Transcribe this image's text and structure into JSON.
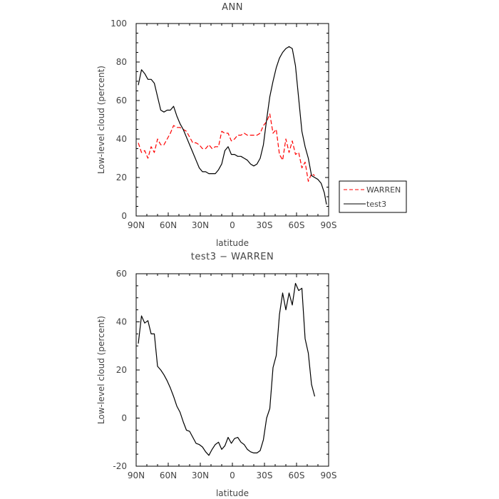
{
  "chart_data": [
    {
      "type": "line",
      "title": "ANN",
      "xlabel": "latitude",
      "ylabel": "Low-level cloud (percent)",
      "x_tick_labels": [
        "90N",
        "60N",
        "30N",
        "0",
        "30S",
        "60S",
        "90S"
      ],
      "x_tick_values": [
        90,
        60,
        30,
        0,
        -30,
        -60,
        -90
      ],
      "xlim": [
        90,
        -90
      ],
      "ylim": [
        0,
        100
      ],
      "y_ticks": [
        0,
        20,
        40,
        60,
        80,
        100
      ],
      "grid": false,
      "legend_position": "right",
      "series": [
        {
          "name": "WARREN",
          "color": "#ff0000",
          "style": "dashed",
          "x": [
            88,
            85,
            82,
            79,
            76,
            73,
            70,
            67,
            64,
            61,
            58,
            55,
            52,
            49,
            46,
            43,
            40,
            37,
            34,
            31,
            28,
            25,
            22,
            19,
            16,
            13,
            10,
            7,
            4,
            1,
            -2,
            -5,
            -8,
            -11,
            -14,
            -17,
            -20,
            -23,
            -26,
            -29,
            -32,
            -35,
            -38,
            -41,
            -44,
            -47,
            -50,
            -53,
            -56,
            -59,
            -62,
            -65,
            -68,
            -71,
            -74,
            -77
          ],
          "y": [
            38,
            33,
            34,
            30,
            36,
            33,
            40,
            37,
            37,
            40,
            43,
            47,
            46,
            46,
            45,
            44,
            41,
            38,
            38,
            37,
            35,
            35,
            37,
            35,
            36,
            36,
            44,
            43,
            43,
            39,
            40,
            42,
            42,
            43,
            42,
            42,
            42,
            42,
            43,
            47,
            49,
            53,
            43,
            45,
            32,
            29,
            40,
            33,
            39,
            32,
            33,
            25,
            28,
            18,
            22,
            21
          ]
        },
        {
          "name": "test3",
          "color": "#000000",
          "style": "solid",
          "x": [
            88,
            85,
            82,
            79,
            76,
            73,
            70,
            67,
            64,
            61,
            58,
            55,
            52,
            49,
            46,
            43,
            40,
            37,
            34,
            31,
            28,
            25,
            22,
            19,
            16,
            13,
            10,
            7,
            4,
            1,
            -2,
            -5,
            -8,
            -11,
            -14,
            -17,
            -20,
            -23,
            -26,
            -29,
            -32,
            -35,
            -38,
            -41,
            -44,
            -47,
            -50,
            -53,
            -56,
            -59,
            -62,
            -65,
            -68,
            -71,
            -74,
            -77,
            -80,
            -83,
            -86,
            -88
          ],
          "y": [
            68,
            76,
            74,
            71,
            71,
            69,
            62,
            55,
            54,
            55,
            55,
            57,
            52,
            48,
            45,
            41,
            37,
            33,
            29,
            25,
            23,
            23,
            22,
            22,
            22,
            24,
            27,
            34,
            36,
            32,
            32,
            31,
            31,
            30,
            29,
            27,
            26,
            27,
            30,
            37,
            50,
            62,
            70,
            77,
            82,
            85,
            87,
            88,
            87,
            78,
            61,
            44,
            36,
            30,
            21,
            20,
            19,
            17,
            12,
            6
          ]
        }
      ]
    },
    {
      "type": "line",
      "title": "test3 − WARREN",
      "xlabel": "latitude",
      "ylabel": "Low-level cloud (percent)",
      "x_tick_labels": [
        "90N",
        "60N",
        "30N",
        "0",
        "30S",
        "60S",
        "90S"
      ],
      "x_tick_values": [
        90,
        60,
        30,
        0,
        -30,
        -60,
        -90
      ],
      "xlim": [
        90,
        -90
      ],
      "ylim": [
        -20,
        60
      ],
      "y_ticks": [
        -20,
        0,
        20,
        40,
        60
      ],
      "grid": false,
      "series": [
        {
          "name": "test3 − WARREN",
          "color": "#000000",
          "style": "solid",
          "x": [
            88,
            85,
            82,
            79,
            76,
            73,
            70,
            67,
            64,
            61,
            58,
            55,
            52,
            49,
            46,
            43,
            40,
            37,
            34,
            31,
            28,
            25,
            22,
            19,
            16,
            13,
            10,
            7,
            4,
            1,
            -2,
            -5,
            -8,
            -11,
            -14,
            -17,
            -20,
            -23,
            -26,
            -29,
            -32,
            -35,
            -38,
            -41,
            -44,
            -47,
            -50,
            -53,
            -56,
            -59,
            -62,
            -65,
            -68,
            -71,
            -74,
            -77
          ],
          "y": [
            31,
            42.5,
            39.5,
            40.5,
            35,
            35,
            21.5,
            20,
            18,
            15.5,
            12.5,
            9,
            5,
            2.5,
            -1.5,
            -5,
            -5.5,
            -8,
            -10.5,
            -11,
            -12,
            -14,
            -15.5,
            -13,
            -11,
            -10,
            -13,
            -11.5,
            -8,
            -10.5,
            -8.5,
            -8,
            -10,
            -11,
            -13,
            -14,
            -14.5,
            -14.5,
            -13.5,
            -9,
            0,
            4,
            21,
            26,
            43,
            52,
            45,
            52,
            47,
            56,
            53,
            54,
            33,
            27,
            14,
            9
          ]
        }
      ]
    }
  ]
}
